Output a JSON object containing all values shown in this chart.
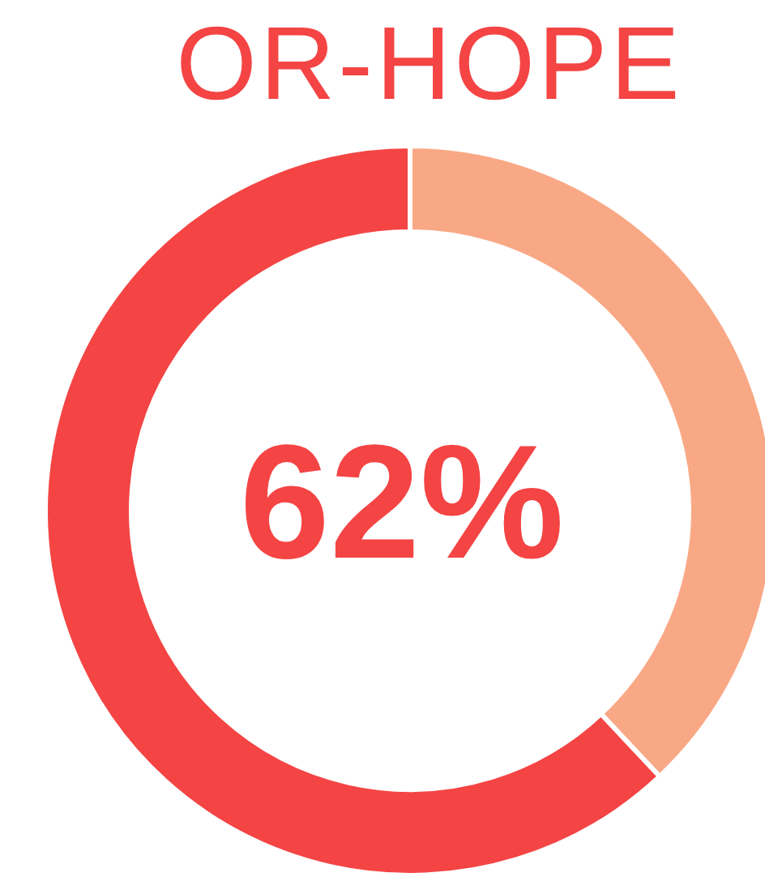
{
  "chart_data": {
    "type": "donut",
    "title": "OR-HOPE",
    "categories": [
      null,
      null
    ],
    "values": [
      38,
      62
    ],
    "colors": [
      "#f9a886",
      "#f44444"
    ],
    "annotations": [
      "62%"
    ]
  }
}
